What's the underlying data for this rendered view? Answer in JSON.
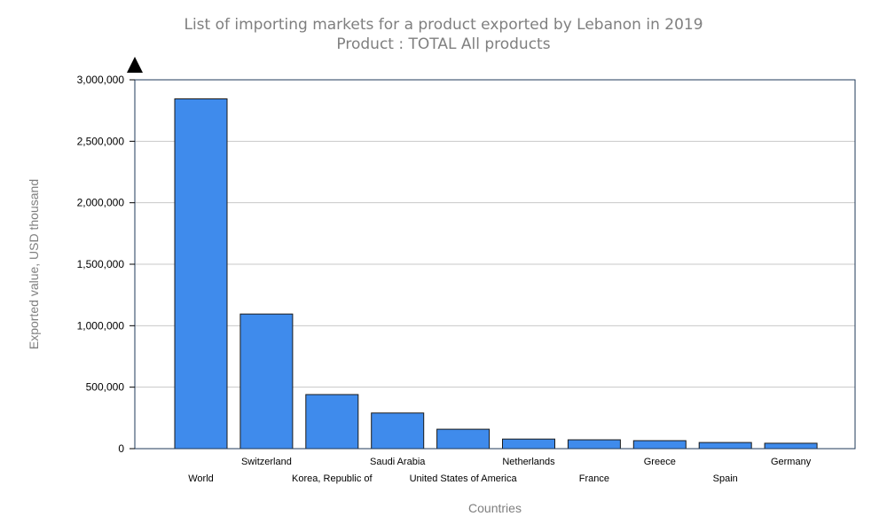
{
  "chart_data": {
    "type": "bar",
    "title": "List of importing markets for a product exported by Lebanon in 2019",
    "subtitle": "Product : TOTAL All products",
    "xlabel": "Countries",
    "ylabel": "Exported value, USD thousand",
    "categories": [
      "World",
      "Switzerland",
      "Korea, Republic of",
      "Saudi Arabia",
      "United States of America",
      "Netherlands",
      "France",
      "Greece",
      "Spain",
      "Germany"
    ],
    "values": [
      2845000,
      1095000,
      440000,
      290000,
      158000,
      78000,
      72000,
      65000,
      50000,
      44000
    ],
    "ylim": [
      0,
      3000000
    ],
    "yticks": [
      {
        "value": 0,
        "label": "0"
      },
      {
        "value": 500000,
        "label": "500,000"
      },
      {
        "value": 1000000,
        "label": "1,000,000"
      },
      {
        "value": 1500000,
        "label": "1,500,000"
      },
      {
        "value": 2000000,
        "label": "2,000,000"
      },
      {
        "value": 2500000,
        "label": "2,500,000"
      },
      {
        "value": 3000000,
        "label": "3,000,000"
      }
    ],
    "grid": true,
    "legend": "none",
    "colors": {
      "bar": "#3f8bec",
      "bar_stroke": "#1a1a1a",
      "grid": "#c8c8c8",
      "frame": "#1f3a5a"
    }
  }
}
